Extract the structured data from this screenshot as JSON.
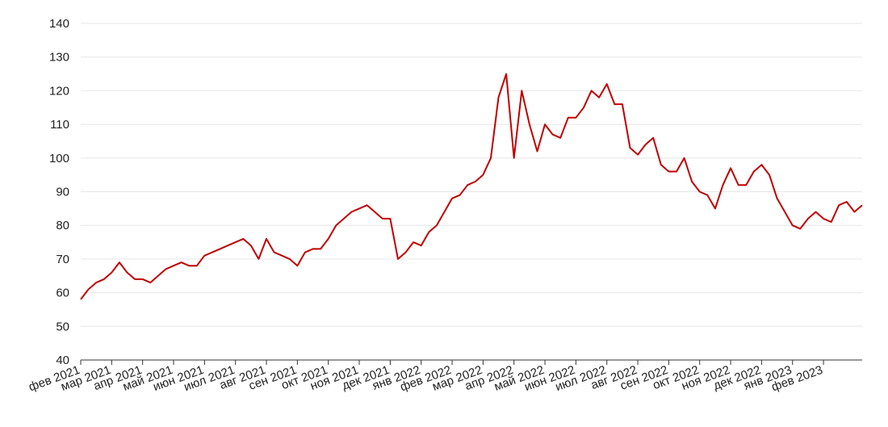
{
  "chart_data": {
    "type": "line",
    "categories": [
      "фев 2021",
      null,
      null,
      null,
      "мар 2021",
      null,
      null,
      null,
      "апр 2021",
      null,
      null,
      null,
      "май 2021",
      null,
      null,
      null,
      "июн 2021",
      null,
      null,
      null,
      "июл 2021",
      null,
      null,
      null,
      "авг 2021",
      null,
      null,
      null,
      "сен 2021",
      null,
      null,
      null,
      "окт 2021",
      null,
      null,
      null,
      "ноя 2021",
      null,
      null,
      null,
      "дек 2021",
      null,
      null,
      null,
      "янв 2022",
      null,
      null,
      null,
      "фев 2022",
      null,
      null,
      null,
      "мар 2022",
      null,
      null,
      null,
      "апр 2022",
      null,
      null,
      null,
      "май 2022",
      null,
      null,
      null,
      "июн 2022",
      null,
      null,
      null,
      "июл 2022",
      null,
      null,
      null,
      "авг 2022",
      null,
      null,
      null,
      "сен 2022",
      null,
      null,
      null,
      "окт 2022",
      null,
      null,
      null,
      "ноя 2022",
      null,
      null,
      null,
      "дек 2022",
      null,
      null,
      null,
      "янв 2023",
      null,
      null,
      null,
      "фев 2023",
      null,
      null,
      null,
      null,
      null
    ],
    "series": [
      {
        "color": "#c00000",
        "values": [
          58,
          61,
          63,
          64,
          66,
          69,
          66,
          64,
          64,
          63,
          65,
          67,
          68,
          69,
          68,
          68,
          71,
          72,
          73,
          74,
          75,
          76,
          74,
          70,
          76,
          72,
          71,
          70,
          68,
          72,
          73,
          73,
          76,
          80,
          82,
          84,
          85,
          86,
          84,
          82,
          82,
          70,
          72,
          75,
          74,
          78,
          80,
          84,
          88,
          89,
          92,
          93,
          95,
          100,
          118,
          125,
          100,
          120,
          110,
          102,
          110,
          107,
          106,
          112,
          112,
          115,
          120,
          118,
          122,
          116,
          116,
          103,
          101,
          104,
          106,
          98,
          96,
          96,
          100,
          93,
          90,
          89,
          85,
          92,
          97,
          92,
          92,
          96,
          98,
          95,
          88,
          84,
          80,
          79,
          82,
          84,
          82,
          81,
          86,
          87,
          84,
          86
        ]
      }
    ],
    "ylim": [
      40,
      140
    ],
    "yticks": [
      40,
      50,
      60,
      70,
      80,
      90,
      100,
      110,
      120,
      130,
      140
    ],
    "grid": true
  }
}
